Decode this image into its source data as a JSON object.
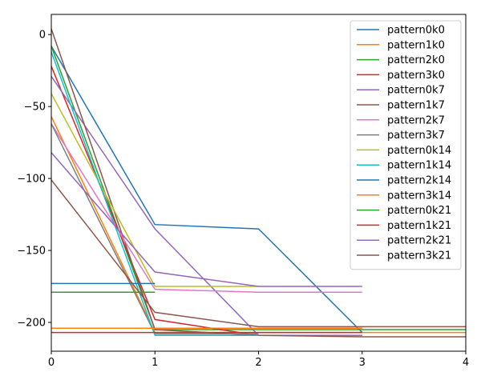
{
  "chart_data": {
    "type": "line",
    "title": "",
    "xlabel": "",
    "ylabel": "",
    "xlim": [
      0,
      4
    ],
    "ylim": [
      -220,
      14
    ],
    "xticks": [
      0,
      1,
      2,
      3,
      4
    ],
    "yticks": [
      0,
      -50,
      -100,
      -150,
      -200
    ],
    "grid": false,
    "legend_position": "top-right",
    "series": [
      {
        "name": "pattern0k0",
        "color": "#1f77b4",
        "x": [
          0,
          1,
          2,
          3
        ],
        "y": [
          -8,
          -132,
          -135,
          -207
        ]
      },
      {
        "name": "pattern1k0",
        "color": "#ff7f0e",
        "x": [
          0,
          1,
          2,
          3,
          4
        ],
        "y": [
          -57,
          -207,
          -207,
          -207,
          -207
        ]
      },
      {
        "name": "pattern2k0",
        "color": "#2ca02c",
        "x": [
          0,
          1,
          2,
          3,
          4
        ],
        "y": [
          -8,
          -205,
          -205,
          -205,
          -205
        ]
      },
      {
        "name": "pattern3k0",
        "color": "#d62728",
        "x": [
          0,
          1,
          2,
          3
        ],
        "y": [
          -22,
          -198,
          -209,
          -209
        ]
      },
      {
        "name": "pattern0k7",
        "color": "#9467bd",
        "x": [
          0,
          1,
          2,
          3
        ],
        "y": [
          -29,
          -135,
          -209,
          -209
        ]
      },
      {
        "name": "pattern1k7",
        "color": "#8c564b",
        "x": [
          0,
          1,
          2,
          3,
          4
        ],
        "y": [
          4,
          -205,
          -209,
          -210,
          -210
        ]
      },
      {
        "name": "pattern2k7",
        "color": "#e377c2",
        "x": [
          0,
          1,
          2,
          3
        ],
        "y": [
          -62,
          -177,
          -179,
          -179
        ]
      },
      {
        "name": "pattern3k7",
        "color": "#7f7f7f",
        "x": [
          0,
          1,
          2
        ],
        "y": [
          -62,
          -208,
          -208
        ]
      },
      {
        "name": "pattern0k14",
        "color": "#bcbd22",
        "x": [
          0,
          1,
          2
        ],
        "y": [
          -41,
          -175,
          -175
        ]
      },
      {
        "name": "pattern1k14",
        "color": "#17becf",
        "x": [
          0,
          1,
          2
        ],
        "y": [
          -12,
          -209,
          -209
        ]
      },
      {
        "name": "pattern2k14",
        "color": "#1f77b4",
        "x": [
          0,
          1
        ],
        "y": [
          -173,
          -173
        ]
      },
      {
        "name": "pattern3k14",
        "color": "#ff7f0e",
        "x": [
          0,
          1,
          2,
          3
        ],
        "y": [
          -204,
          -204,
          -204,
          -204
        ]
      },
      {
        "name": "pattern0k21",
        "color": "#2ca02c",
        "x": [
          0,
          1
        ],
        "y": [
          -179,
          -179
        ]
      },
      {
        "name": "pattern1k21",
        "color": "#d62728",
        "x": [
          0,
          1,
          2,
          3
        ],
        "y": [
          -207,
          -207,
          -207,
          -207
        ]
      },
      {
        "name": "pattern2k21",
        "color": "#9467bd",
        "x": [
          0,
          1,
          2,
          3
        ],
        "y": [
          -82,
          -165,
          -175,
          -175
        ]
      },
      {
        "name": "pattern3k21",
        "color": "#8c564b",
        "x": [
          0,
          1,
          2,
          3,
          4
        ],
        "y": [
          -101,
          -193,
          -203,
          -203,
          -203
        ]
      }
    ]
  }
}
